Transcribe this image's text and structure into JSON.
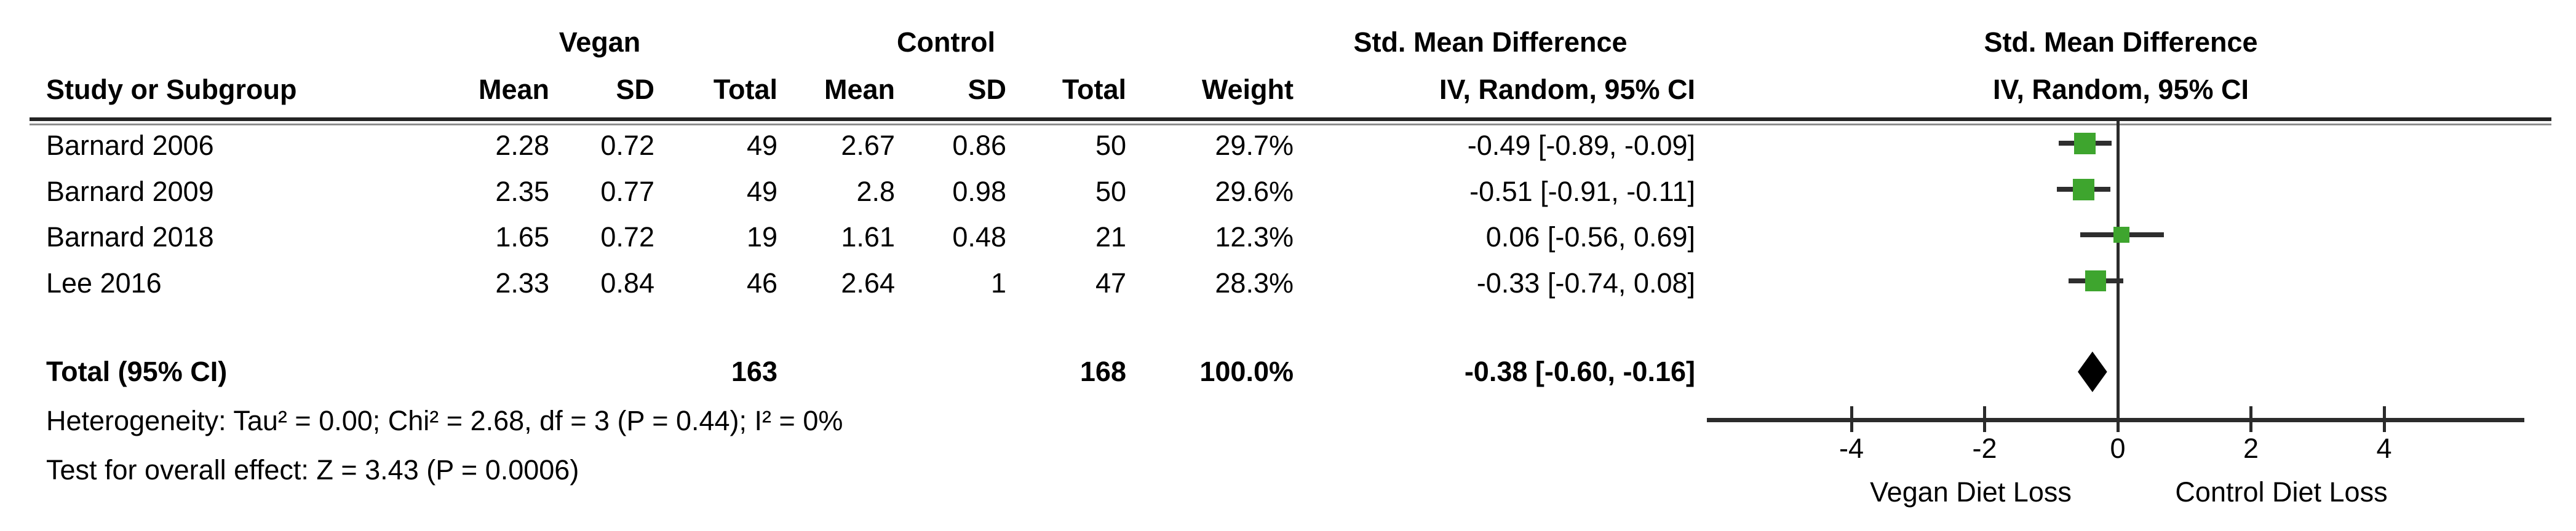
{
  "table": {
    "headers": {
      "study": "Study or Subgroup",
      "vegan_group": "Vegan",
      "control_group": "Control",
      "effect_group": "Std. Mean Difference",
      "mean": "Mean",
      "sd": "SD",
      "total": "Total",
      "weight": "Weight",
      "method": "IV, Random, 95% CI"
    },
    "total_row": {
      "label": "Total (95% CI)",
      "vegan_total": "163",
      "control_total": "168",
      "weight_text": "100.0%",
      "estimate_text": "-0.38 [-0.60, -0.16]"
    },
    "footnotes": {
      "heterogeneity": "Heterogeneity: Tau² = 0.00; Chi² = 2.68, df = 3 (P = 0.44); I² = 0%",
      "overall_effect": "Test for overall effect: Z = 3.43 (P = 0.0006)"
    }
  },
  "chart_data": {
    "type": "forest",
    "effect_measure": "Std. Mean Difference",
    "method": "IV, Random, 95% CI",
    "studies": [
      {
        "label": "Barnard 2006",
        "vegan_mean": "2.28",
        "vegan_sd": "0.72",
        "vegan_total": "49",
        "control_mean": "2.67",
        "control_sd": "0.86",
        "control_total": "50",
        "weight_text": "29.7%",
        "weight_pct": 29.7,
        "estimate": -0.49,
        "ci_lower": -0.89,
        "ci_upper": -0.09,
        "estimate_text": "-0.49 [-0.89, -0.09]"
      },
      {
        "label": "Barnard 2009",
        "vegan_mean": "2.35",
        "vegan_sd": "0.77",
        "vegan_total": "49",
        "control_mean": "2.8",
        "control_sd": "0.98",
        "control_total": "50",
        "weight_text": "29.6%",
        "weight_pct": 29.6,
        "estimate": -0.51,
        "ci_lower": -0.91,
        "ci_upper": -0.11,
        "estimate_text": "-0.51 [-0.91, -0.11]"
      },
      {
        "label": "Barnard 2018",
        "vegan_mean": "1.65",
        "vegan_sd": "0.72",
        "vegan_total": "19",
        "control_mean": "1.61",
        "control_sd": "0.48",
        "control_total": "21",
        "weight_text": "12.3%",
        "weight_pct": 12.3,
        "estimate": 0.06,
        "ci_lower": -0.56,
        "ci_upper": 0.69,
        "estimate_text": "0.06 [-0.56, 0.69]"
      },
      {
        "label": "Lee 2016",
        "vegan_mean": "2.33",
        "vegan_sd": "0.84",
        "vegan_total": "46",
        "control_mean": "2.64",
        "control_sd": "1",
        "control_total": "47",
        "weight_text": "28.3%",
        "weight_pct": 28.3,
        "estimate": -0.33,
        "ci_lower": -0.74,
        "ci_upper": 0.08,
        "estimate_text": "-0.33 [-0.74, 0.08]"
      }
    ],
    "total": {
      "estimate": -0.38,
      "ci_lower": -0.6,
      "ci_upper": -0.16
    },
    "axis": {
      "ticks": [
        -4,
        -2,
        0,
        2,
        4
      ],
      "xlim": [
        -6.2,
        6.1
      ],
      "left_label": "Vegan Diet Loss",
      "right_label": "Control Diet Loss"
    },
    "marker_color": "#3ea52e",
    "line_color": "#2b2b2b",
    "diamond_color": "#000000"
  }
}
